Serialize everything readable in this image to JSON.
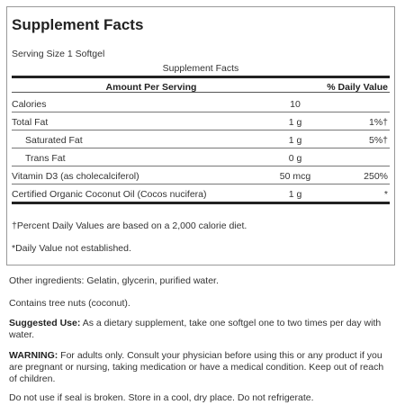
{
  "title": "Supplement Facts",
  "serving_size": "Serving Size 1 Softgel",
  "table_caption": "Supplement Facts",
  "table_header": {
    "amount": "Amount Per Serving",
    "daily_value": "% Daily Value"
  },
  "rows": [
    {
      "name": "Calories",
      "amount": "10",
      "dv": ""
    },
    {
      "name": "Total Fat",
      "amount": "1 g",
      "dv": "1%†"
    },
    {
      "name": "Saturated Fat",
      "amount": "1 g",
      "dv": "5%†"
    },
    {
      "name": "Trans Fat",
      "amount": "0 g",
      "dv": ""
    },
    {
      "name": "Vitamin D3 (as cholecalciferol)",
      "amount": "50 mcg",
      "dv": "250%"
    },
    {
      "name": "Certified Organic Coconut Oil (Cocos nucifera)",
      "amount": "1 g",
      "dv": "*"
    }
  ],
  "footnotes": [
    "†Percent Daily Values are based on a 2,000 calorie diet.",
    "*Daily Value not established."
  ],
  "other_ingredients": "Other ingredients: Gelatin, glycerin, purified water.",
  "allergen": "Contains tree nuts (coconut).",
  "suggested_use": {
    "label": "Suggested Use:",
    "text": " As a dietary supplement, take one softgel one to two times per day with water."
  },
  "warning": {
    "label": "WARNING:",
    "text": " For adults only. Consult your physician before using this or any product if you are pregnant or nursing, taking medication or have a medical condition. Keep out of reach of children."
  },
  "storage": "Do not use if seal is broken. Store in a cool, dry place. Do not refrigerate."
}
